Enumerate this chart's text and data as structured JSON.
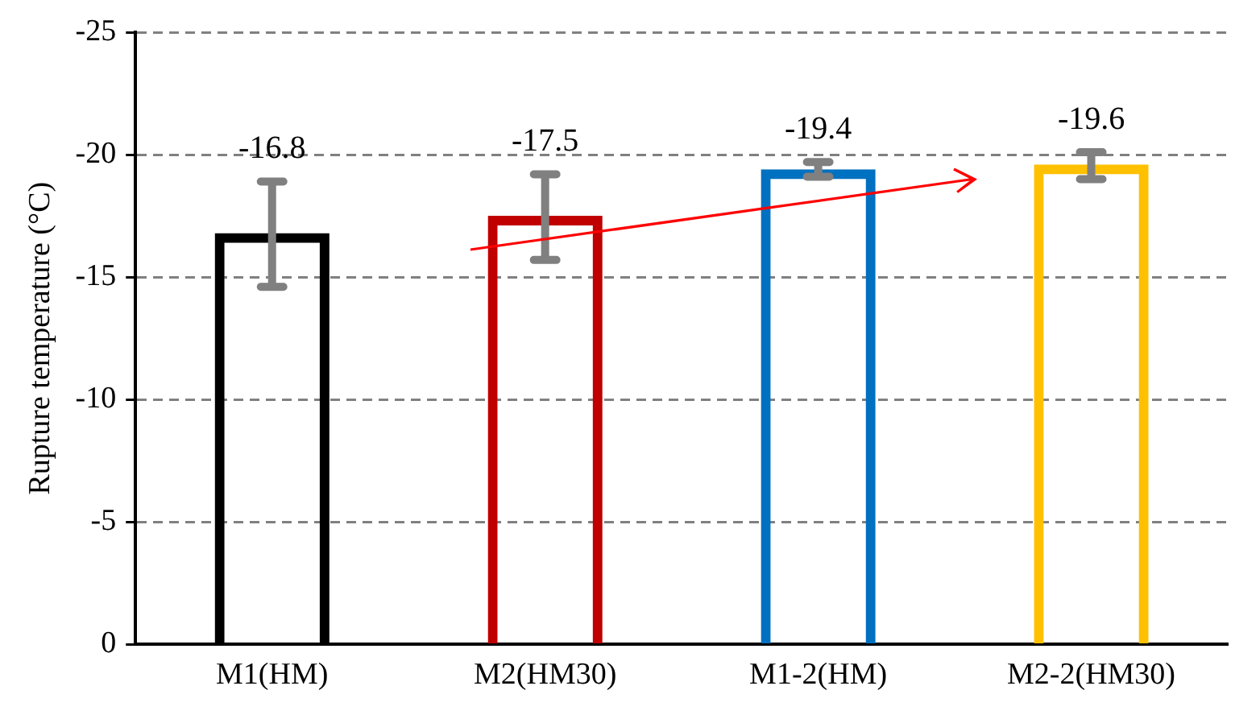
{
  "chart_data": {
    "type": "bar",
    "ylabel": "Rupture temperature (°C)",
    "categories": [
      "M1(HM)",
      "M2(HM30)",
      "M1-2(HM)",
      "M2-2(HM30)"
    ],
    "values": [
      -16.8,
      -17.5,
      -19.4,
      -19.6
    ],
    "colors": [
      "#000000",
      "#c00000",
      "#0070c0",
      "#ffc000"
    ],
    "errors": [
      [
        -14.6,
        -18.9
      ],
      [
        -15.7,
        -19.2
      ],
      [
        -19.1,
        -19.7
      ],
      [
        -19.0,
        -20.1
      ]
    ],
    "ylim": [
      0,
      -25
    ],
    "yticks": [
      0,
      -5,
      -10,
      -15,
      -20,
      -25
    ],
    "grid": "y",
    "data_labels": true
  }
}
